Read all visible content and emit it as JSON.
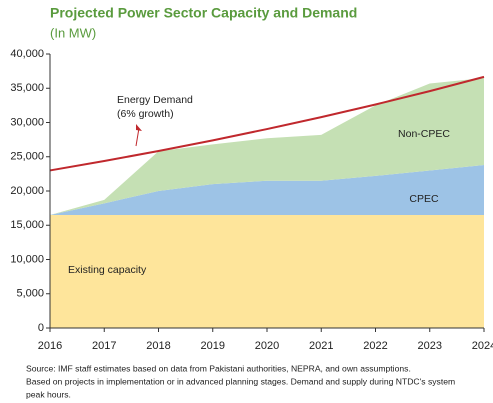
{
  "chart_data": {
    "type": "area",
    "title": "Projected Power Sector Capacity and Demand",
    "subtitle": "(In MW)",
    "x": [
      2016,
      2017,
      2018,
      2019,
      2020,
      2021,
      2022,
      2023,
      2024
    ],
    "xlim": [
      2016,
      2024
    ],
    "xticks": [
      2016,
      2017,
      2018,
      2019,
      2020,
      2021,
      2022,
      2023,
      2024
    ],
    "ylim": [
      0,
      40000
    ],
    "yticks": [
      0,
      {
        "value": 5000,
        "label": "5,000"
      },
      {
        "value": 10000,
        "label": "10,000"
      },
      {
        "value": 15000,
        "label": "15,000"
      },
      {
        "value": 20000,
        "label": "20,000"
      },
      {
        "value": 25000,
        "label": "25,000"
      },
      {
        "value": 30000,
        "label": "30,000"
      },
      {
        "value": 35000,
        "label": "35,000"
      },
      {
        "value": 40000,
        "label": "40,000"
      }
    ],
    "stacked": true,
    "series": [
      {
        "name": "Existing capacity",
        "color": "#fee59b",
        "values": [
          16500,
          16500,
          16500,
          16500,
          16500,
          16500,
          16500,
          16500,
          16500
        ]
      },
      {
        "name": "CPEC",
        "color": "#9dc3e6",
        "values": [
          0,
          1700,
          3500,
          4500,
          5000,
          5000,
          5700,
          6500,
          7300
        ]
      },
      {
        "name": "Non-CPEC",
        "color": "#c5e0b4",
        "values": [
          0,
          500,
          5800,
          5800,
          6200,
          6700,
          10300,
          12700,
          12700
        ]
      },
      {
        "name": "Energy Demand",
        "type": "line",
        "color": "#c0282d",
        "values": [
          23000,
          24380,
          25840,
          27390,
          29040,
          30780,
          32630,
          34580,
          36660
        ]
      }
    ],
    "annotations": [
      "(6% growth)"
    ],
    "notes": [
      "Source: IMF staff estimates based on data from Pakistani authorities, NEPRA, and own assumptions.",
      "Based on projects in implementation or in advanced planning stages. Demand and supply during NTDC's system",
      "peak hours."
    ]
  }
}
